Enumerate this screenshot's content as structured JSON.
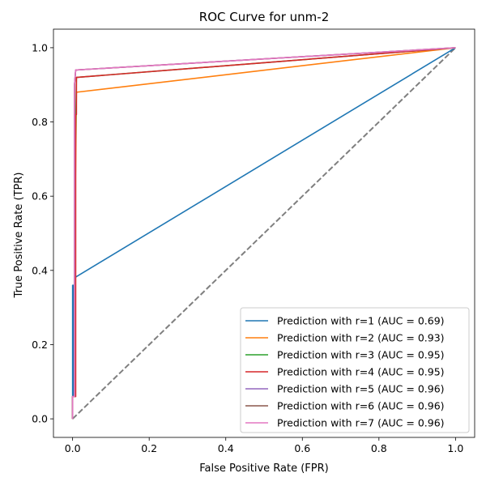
{
  "chart_data": {
    "type": "line",
    "title": "ROC Curve for unm-2",
    "xlabel": "False Positive Rate (FPR)",
    "ylabel": "True Positive Rate (TPR)",
    "xlim": [
      -0.05,
      1.05
    ],
    "ylim": [
      -0.05,
      1.05
    ],
    "xticks": [
      0.0,
      0.2,
      0.4,
      0.6,
      0.8,
      1.0
    ],
    "yticks": [
      0.0,
      0.2,
      0.4,
      0.6,
      0.8,
      1.0
    ],
    "xtick_labels": [
      "0.0",
      "0.2",
      "0.4",
      "0.6",
      "0.8",
      "1.0"
    ],
    "ytick_labels": [
      "0.0",
      "0.2",
      "0.4",
      "0.6",
      "0.8",
      "1.0"
    ],
    "grid": false,
    "legend_position": "lower-right",
    "series": [
      {
        "name": "Prediction with r=1 (AUC = 0.69)",
        "color": "#1f77b4",
        "x": [
          0.0,
          0.0,
          0.002,
          0.002,
          0.005,
          1.0
        ],
        "y": [
          0.0,
          0.36,
          0.36,
          0.06,
          0.38,
          1.0
        ]
      },
      {
        "name": "Prediction with r=2 (AUC = 0.93)",
        "color": "#ff7f0e",
        "x": [
          0.0,
          0.0,
          0.005,
          0.005,
          0.01,
          1.0
        ],
        "y": [
          0.0,
          0.06,
          0.06,
          0.42,
          0.88,
          1.0
        ]
      },
      {
        "name": "Prediction with r=3 (AUC = 0.95)",
        "color": "#2ca02c",
        "x": [
          0.0,
          0.0,
          0.005,
          0.005,
          0.01,
          1.0
        ],
        "y": [
          0.0,
          0.06,
          0.06,
          0.54,
          0.92,
          1.0
        ]
      },
      {
        "name": "Prediction with r=4 (AUC = 0.95)",
        "color": "#d62728",
        "x": [
          0.0,
          0.0,
          0.008,
          0.008,
          0.01,
          0.01,
          1.0
        ],
        "y": [
          0.0,
          0.06,
          0.06,
          0.82,
          0.82,
          0.92,
          1.0
        ]
      },
      {
        "name": "Prediction with r=5 (AUC = 0.96)",
        "color": "#9467bd",
        "x": [
          0.0,
          0.0,
          0.005,
          0.005,
          0.008,
          1.0
        ],
        "y": [
          0.0,
          0.06,
          0.06,
          0.9,
          0.94,
          1.0
        ]
      },
      {
        "name": "Prediction with r=6 (AUC = 0.96)",
        "color": "#8c564b",
        "x": [
          0.0,
          0.0,
          0.005,
          0.005,
          0.008,
          1.0
        ],
        "y": [
          0.0,
          0.06,
          0.06,
          0.9,
          0.94,
          1.0
        ]
      },
      {
        "name": "Prediction with r=7 (AUC = 0.96)",
        "color": "#e377c2",
        "x": [
          0.0,
          0.0,
          0.005,
          0.005,
          0.008,
          1.0
        ],
        "y": [
          0.0,
          0.06,
          0.06,
          0.9,
          0.94,
          1.0
        ]
      }
    ],
    "reference_line": {
      "color": "#7f7f7f",
      "style": "dashed",
      "x": [
        0.0,
        1.0
      ],
      "y": [
        0.0,
        1.0
      ]
    }
  }
}
